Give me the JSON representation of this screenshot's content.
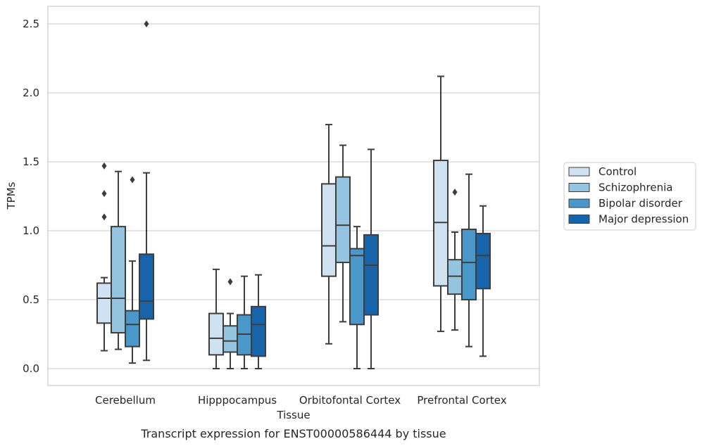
{
  "caption": "Transcript expression for ENST00000586444 by tissue",
  "chart_data": {
    "type": "boxplot",
    "xlabel": "Tissue",
    "ylabel": "TPMs",
    "ylim": [
      -0.12,
      2.6
    ],
    "yticks": [
      "0.0",
      "0.5",
      "1.0",
      "1.5",
      "2.0",
      "2.5"
    ],
    "grid": "horizontal",
    "legend_position": "right, outside plot",
    "categories": [
      "Cerebellum",
      "Hipppocampus",
      "Orbitofontal Cortex",
      "Prefrontal Cortex"
    ],
    "series": [
      {
        "name": "Control",
        "color": "#d0e1f2",
        "boxes": [
          {
            "whislo": 0.13,
            "q1": 0.33,
            "med": 0.51,
            "q3": 0.62,
            "whishi": 0.66,
            "fliers": [
              1.1,
              1.27,
              1.47
            ]
          },
          {
            "whislo": 0.0,
            "q1": 0.1,
            "med": 0.22,
            "q3": 0.4,
            "whishi": 0.72,
            "fliers": []
          },
          {
            "whislo": 0.18,
            "q1": 0.67,
            "med": 0.89,
            "q3": 1.34,
            "whishi": 1.77,
            "fliers": []
          },
          {
            "whislo": 0.27,
            "q1": 0.6,
            "med": 1.06,
            "q3": 1.51,
            "whishi": 2.12,
            "fliers": []
          }
        ]
      },
      {
        "name": "Schizophrenia",
        "color": "#94c4df",
        "boxes": [
          {
            "whislo": 0.14,
            "q1": 0.26,
            "med": 0.51,
            "q3": 1.03,
            "whishi": 1.43,
            "fliers": []
          },
          {
            "whislo": 0.0,
            "q1": 0.12,
            "med": 0.2,
            "q3": 0.31,
            "whishi": 0.4,
            "fliers": [
              0.63
            ]
          },
          {
            "whislo": 0.34,
            "q1": 0.77,
            "med": 1.04,
            "q3": 1.39,
            "whishi": 1.62,
            "fliers": []
          },
          {
            "whislo": 0.28,
            "q1": 0.54,
            "med": 0.67,
            "q3": 0.79,
            "whishi": 0.99,
            "fliers": [
              1.28
            ]
          }
        ]
      },
      {
        "name": "Bipolar disorder",
        "color": "#4a98c9",
        "boxes": [
          {
            "whislo": 0.04,
            "q1": 0.16,
            "med": 0.32,
            "q3": 0.42,
            "whishi": 0.78,
            "fliers": [
              1.37
            ]
          },
          {
            "whislo": 0.0,
            "q1": 0.1,
            "med": 0.25,
            "q3": 0.39,
            "whishi": 0.67,
            "fliers": []
          },
          {
            "whislo": 0.0,
            "q1": 0.32,
            "med": 0.82,
            "q3": 0.87,
            "whishi": 1.03,
            "fliers": []
          },
          {
            "whislo": 0.16,
            "q1": 0.5,
            "med": 0.77,
            "q3": 1.01,
            "whishi": 1.41,
            "fliers": []
          }
        ]
      },
      {
        "name": "Major depression",
        "color": "#1764ab",
        "boxes": [
          {
            "whislo": 0.06,
            "q1": 0.36,
            "med": 0.49,
            "q3": 0.83,
            "whishi": 1.42,
            "fliers": [
              2.5
            ]
          },
          {
            "whislo": 0.0,
            "q1": 0.09,
            "med": 0.32,
            "q3": 0.45,
            "whishi": 0.68,
            "fliers": []
          },
          {
            "whislo": 0.0,
            "q1": 0.39,
            "med": 0.75,
            "q3": 0.97,
            "whishi": 1.59,
            "fliers": []
          },
          {
            "whislo": 0.09,
            "q1": 0.58,
            "med": 0.82,
            "q3": 0.98,
            "whishi": 1.18,
            "fliers": []
          }
        ]
      }
    ]
  }
}
